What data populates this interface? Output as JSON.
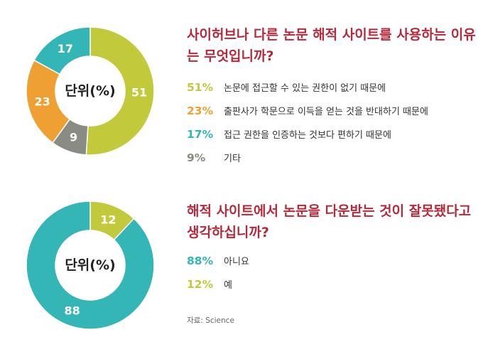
{
  "chart_data": [
    {
      "type": "pie",
      "title": "사이허브나 다른 논문 해적 사이트를 사용하는 이유는 무엇입니까?",
      "center_label": "단위(%)",
      "categories": [
        "논문에 접근할 수 있는 권한이 없기 때문에",
        "출판사가 학문으로 이득을 얻는 것을 반대하기 때문에",
        "접근 권한을 인증하는 것보다 편하기 때문에",
        "기타"
      ],
      "values": [
        51,
        23,
        17,
        9
      ],
      "value_labels": [
        "51%",
        "23%",
        "17%",
        "9%"
      ],
      "slice_labels": [
        "51",
        "23",
        "17",
        "9"
      ],
      "draw_order": [
        0,
        3,
        1,
        2
      ],
      "colors": [
        "#c2c93a",
        "#efa032",
        "#34b5b6",
        "#8a8c84"
      ]
    },
    {
      "type": "pie",
      "title": "해적 사이트에서 논문을 다운받는 것이 잘못됐다고 생각하십니까?",
      "center_label": "단위(%)",
      "categories": [
        "아니요",
        "예"
      ],
      "values": [
        88,
        12
      ],
      "value_labels": [
        "88%",
        "12%"
      ],
      "slice_labels": [
        "88",
        "12"
      ],
      "draw_order": [
        1,
        0
      ],
      "colors": [
        "#34b5b6",
        "#c2c93a"
      ]
    }
  ],
  "source": "자료: Science"
}
